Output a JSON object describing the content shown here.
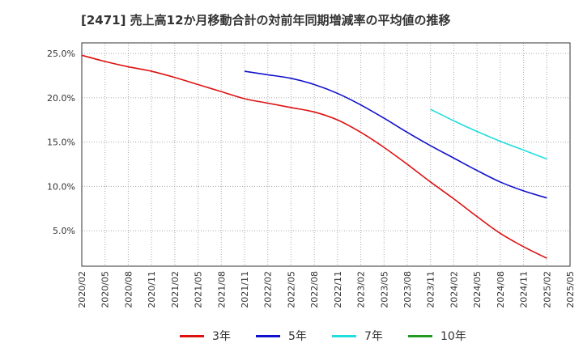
{
  "title": "[2471]  売上高12か月移動合計の対前年同期増減率の平均値の推移",
  "chart_data": {
    "type": "line",
    "title": "[2471]  売上高12か月移動合計の対前年同期増減率の平均値の推移",
    "xlabel": "",
    "ylabel": "",
    "y_tick_labels": [
      "5.0%",
      "10.0%",
      "15.0%",
      "20.0%",
      "25.0%"
    ],
    "y_ticks": [
      5,
      10,
      15,
      20,
      25
    ],
    "ylim": [
      1,
      26.2
    ],
    "x_tick_labels": [
      "2020/02",
      "2020/05",
      "2020/08",
      "2020/11",
      "2021/02",
      "2021/05",
      "2021/08",
      "2021/11",
      "2022/02",
      "2022/05",
      "2022/08",
      "2022/11",
      "2023/02",
      "2023/05",
      "2023/08",
      "2023/11",
      "2024/02",
      "2024/05",
      "2024/08",
      "2024/11",
      "2025/02",
      "2025/05"
    ],
    "grid": true,
    "legend_position": "bottom",
    "series": [
      {
        "name": "3年",
        "color": "#dd1111",
        "x": [
          "2020/02",
          "2020/05",
          "2020/08",
          "2020/11",
          "2021/02",
          "2021/05",
          "2021/08",
          "2021/11",
          "2022/02",
          "2022/05",
          "2022/08",
          "2022/11",
          "2023/02",
          "2023/05",
          "2023/08",
          "2023/11",
          "2024/02",
          "2024/05",
          "2024/08",
          "2024/11",
          "2025/02"
        ],
        "values": [
          24.8,
          24.1,
          23.5,
          23.0,
          22.3,
          21.5,
          20.7,
          19.9,
          19.4,
          18.9,
          18.4,
          17.5,
          16.1,
          14.4,
          12.5,
          10.5,
          8.6,
          6.6,
          4.7,
          3.2,
          1.9
        ]
      },
      {
        "name": "5年",
        "color": "#1111cc",
        "x": [
          "2021/11",
          "2022/02",
          "2022/05",
          "2022/08",
          "2022/11",
          "2023/02",
          "2023/05",
          "2023/08",
          "2023/11",
          "2024/02",
          "2024/05",
          "2024/08",
          "2024/11",
          "2025/02"
        ],
        "values": [
          23.0,
          22.6,
          22.2,
          21.5,
          20.5,
          19.2,
          17.7,
          16.1,
          14.6,
          13.2,
          11.8,
          10.5,
          9.5,
          8.7
        ]
      },
      {
        "name": "7年",
        "color": "#22dddd",
        "x": [
          "2023/11",
          "2024/02",
          "2024/05",
          "2024/08",
          "2024/11",
          "2025/02"
        ],
        "values": [
          18.7,
          17.4,
          16.2,
          15.1,
          14.1,
          13.1
        ]
      },
      {
        "name": "10年",
        "color": "#229922",
        "x": [],
        "values": []
      }
    ]
  }
}
